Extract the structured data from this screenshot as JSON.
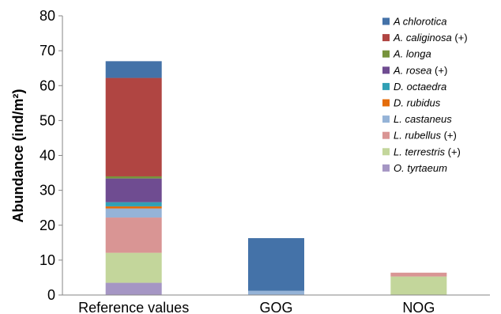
{
  "chart_data": {
    "type": "bar",
    "stacked": true,
    "title": "",
    "xlabel": "",
    "ylabel": "Abundance (ind/m²)",
    "ylim": [
      0,
      80
    ],
    "yticks": [
      0,
      10,
      20,
      30,
      40,
      50,
      60,
      70,
      80
    ],
    "grid": false,
    "legend_position": "top-right",
    "categories": [
      "Reference values",
      "GOG",
      "NOG"
    ],
    "series": [
      {
        "name": "O. tyrtaeum",
        "name_italic": "O. tyrtaeum",
        "name_suffix": "",
        "color": "#A596C4",
        "values": [
          3.5,
          0,
          0
        ]
      },
      {
        "name": "L. terrestris (+)",
        "name_italic": "L. terrestris",
        "name_suffix": " (+)",
        "color": "#C3D69B",
        "values": [
          8.6,
          0,
          5.3
        ]
      },
      {
        "name": "L. rubellus (+)",
        "name_italic": "L. rubellus",
        "name_suffix": " (+)",
        "color": "#D99594",
        "values": [
          10.1,
          0,
          1.1
        ]
      },
      {
        "name": "L. castaneus",
        "name_italic": "L. castaneus",
        "name_suffix": "",
        "color": "#95B3D7",
        "values": [
          2.6,
          1.2,
          0
        ]
      },
      {
        "name": "D. rubidus",
        "name_italic": "D. rubidus",
        "name_suffix": "",
        "color": "#E46C0A",
        "values": [
          0.6,
          0,
          0
        ]
      },
      {
        "name": "D. octaedra",
        "name_italic": "D. octaedra",
        "name_suffix": "",
        "color": "#31A0B5",
        "values": [
          1.2,
          0,
          0
        ]
      },
      {
        "name": "A. rosea (+)",
        "name_italic": "A. rosea",
        "name_suffix": " (+)",
        "color": "#6F4C91",
        "values": [
          6.8,
          0,
          0
        ]
      },
      {
        "name": "A. longa",
        "name_italic": "A. longa",
        "name_suffix": "",
        "color": "#77933C",
        "values": [
          0.6,
          0,
          0
        ]
      },
      {
        "name": "A. caliginosa (+)",
        "name_italic": "A. caliginosa",
        "name_suffix": " (+)",
        "color": "#B04542",
        "values": [
          28.2,
          0,
          0
        ]
      },
      {
        "name": "A chlorotica",
        "name_italic": "A chlorotica",
        "name_suffix": "",
        "color": "#4472A8",
        "values": [
          4.8,
          15.1,
          0
        ]
      }
    ]
  }
}
